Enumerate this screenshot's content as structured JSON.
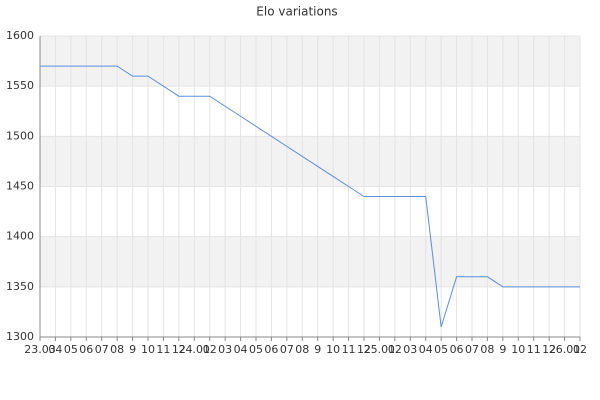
{
  "chart_data": {
    "type": "line",
    "title": "Elo variations",
    "categories": [
      "23.03",
      "04",
      "05",
      "06",
      "07",
      "08",
      "9",
      "10",
      "11",
      "12",
      "24.01",
      "02",
      "03",
      "04",
      "05",
      "06",
      "07",
      "08",
      "9",
      "10",
      "11",
      "12",
      "25.01",
      "02",
      "03",
      "04",
      "05",
      "06",
      "07",
      "08",
      "9",
      "10",
      "11",
      "12",
      "26.01",
      "02"
    ],
    "series": [
      {
        "name": "Elo",
        "color": "#5b8fe0",
        "values": [
          1570,
          1570,
          1570,
          1570,
          1570,
          1570,
          1560,
          1560,
          1550,
          1540,
          1540,
          1540,
          1530,
          1520,
          1510,
          1500,
          1490,
          1480,
          1470,
          1460,
          1450,
          1440,
          1440,
          1440,
          1440,
          1440,
          1310,
          1360,
          1360,
          1360,
          1350,
          1350,
          1350,
          1350,
          1350,
          1350
        ]
      }
    ],
    "ylim": [
      1300,
      1600
    ],
    "yticks": [
      1300,
      1350,
      1400,
      1450,
      1500,
      1550,
      1600
    ],
    "grid": true
  }
}
